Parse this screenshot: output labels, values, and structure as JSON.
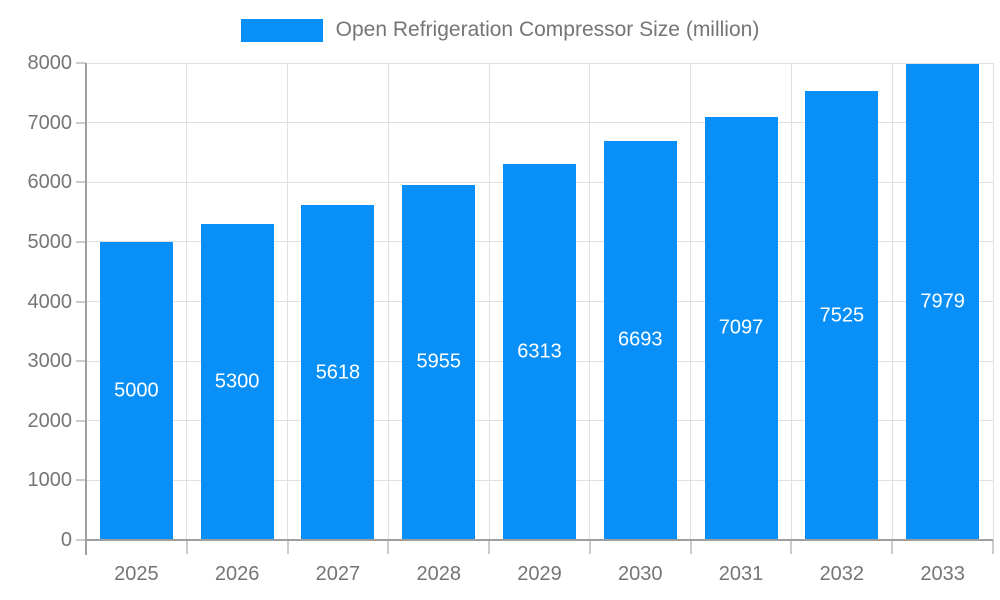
{
  "chart_data": {
    "type": "bar",
    "title": "Open Refrigeration Compressor Size (million)",
    "categories": [
      "2025",
      "2026",
      "2027",
      "2028",
      "2029",
      "2030",
      "2031",
      "2032",
      "2033"
    ],
    "values": [
      5000,
      5300,
      5618,
      5955,
      6313,
      6693,
      7097,
      7525,
      7979
    ],
    "xlabel": "",
    "ylabel": "",
    "ylim": [
      0,
      8000
    ],
    "ytick_step": 1000,
    "ytick_labels": [
      "0",
      "1000",
      "2000",
      "3000",
      "4000",
      "5000",
      "6000",
      "7000",
      "8000"
    ],
    "grid": true,
    "legend_position": "top-center",
    "bar_label_position": "inside-center"
  },
  "colors": {
    "bar": "#0890f8",
    "bar_label": "#ffffff",
    "grid": "#e0e0e0",
    "axis": "#9e9e9e",
    "tick": "#cccccc",
    "text": "#757575",
    "background": "#ffffff"
  }
}
